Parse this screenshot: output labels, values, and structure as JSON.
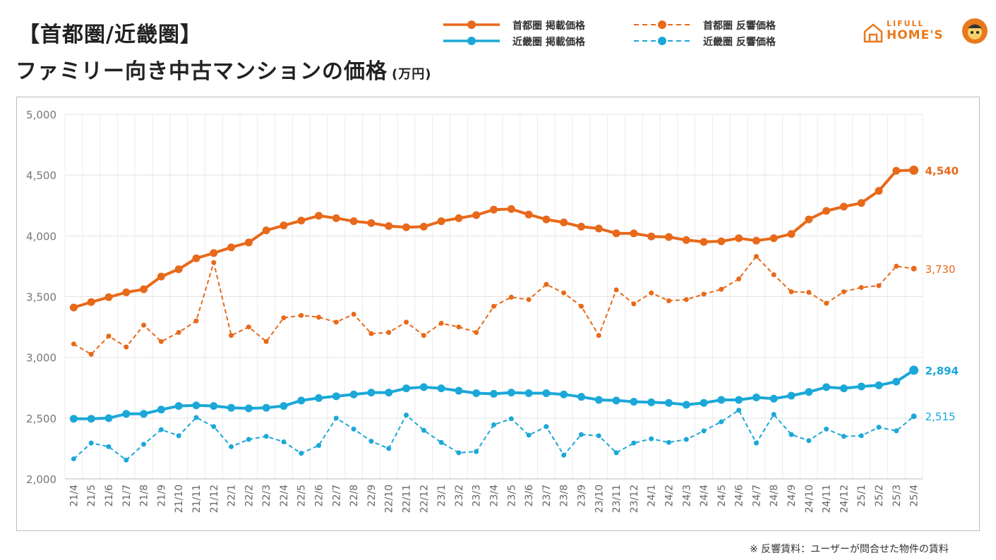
{
  "header": {
    "title_line1": "【首都圏/近畿圏】",
    "title_line2": "ファミリー向き中古マンションの価格",
    "unit": "(万円)"
  },
  "legend": {
    "items": [
      {
        "label": "首都圏 掲載価格",
        "color": "#e8691a",
        "style": "solid"
      },
      {
        "label": "近畿圏 掲載価格",
        "color": "#1ba8d8",
        "style": "solid"
      },
      {
        "label": "首都圏 反響価格",
        "color": "#e8691a",
        "style": "dashed"
      },
      {
        "label": "近畿圏 反響価格",
        "color": "#1ba8d8",
        "style": "dashed"
      }
    ]
  },
  "logo": {
    "top": "LIFULL",
    "bottom": "HOME'S"
  },
  "footnote": "※ 反響賃料：ユーザーが問合せた物件の賃料",
  "chart_data": {
    "type": "line",
    "title": "ファミリー向き中古マンションの価格",
    "ylabel": "万円",
    "ylim": [
      2000,
      5000
    ],
    "yticks": [
      2000,
      2500,
      3000,
      3500,
      4000,
      4500,
      5000
    ],
    "ytick_labels": [
      "2,000",
      "2,500",
      "3,000",
      "3,500",
      "4,000",
      "4,500",
      "5,000"
    ],
    "categories": [
      "21/4",
      "21/5",
      "21/6",
      "21/7",
      "21/8",
      "21/9",
      "21/10",
      "21/11",
      "21/12",
      "22/1",
      "22/2",
      "22/3",
      "22/4",
      "22/5",
      "22/6",
      "22/7",
      "22/8",
      "22/9",
      "22/10",
      "22/11",
      "22/12",
      "23/1",
      "23/2",
      "23/3",
      "23/4",
      "23/5",
      "23/6",
      "23/7",
      "23/8",
      "23/9",
      "23/10",
      "23/11",
      "23/12",
      "24/1",
      "24/2",
      "24/3",
      "24/4",
      "24/5",
      "24/6",
      "24/7",
      "24/8",
      "24/9",
      "24/10",
      "24/11",
      "24/12",
      "25/1",
      "25/2",
      "25/3",
      "25/4"
    ],
    "series": [
      {
        "name": "首都圏 掲載価格",
        "color": "#e8691a",
        "style": "solid",
        "end_label": "4,540",
        "values": [
          3410,
          3455,
          3495,
          3535,
          3560,
          3665,
          3725,
          3815,
          3858,
          3905,
          3945,
          4045,
          4085,
          4125,
          4165,
          4145,
          4120,
          4105,
          4080,
          4070,
          4075,
          4120,
          4145,
          4170,
          4215,
          4220,
          4175,
          4135,
          4110,
          4075,
          4060,
          4020,
          4020,
          3995,
          3990,
          3965,
          3950,
          3955,
          3980,
          3960,
          3980,
          4015,
          4135,
          4205,
          4240,
          4270,
          4370,
          4535,
          4540
        ]
      },
      {
        "name": "首都圏 反響価格",
        "color": "#e8691a",
        "style": "dashed",
        "end_label": "3,730",
        "values": [
          3110,
          3025,
          3175,
          3085,
          3265,
          3130,
          3205,
          3300,
          3780,
          3180,
          3250,
          3130,
          3325,
          3345,
          3330,
          3290,
          3355,
          3195,
          3205,
          3290,
          3180,
          3280,
          3250,
          3205,
          3420,
          3495,
          3475,
          3600,
          3530,
          3420,
          3180,
          3555,
          3440,
          3530,
          3465,
          3475,
          3520,
          3560,
          3645,
          3830,
          3680,
          3540,
          3535,
          3445,
          3540,
          3575,
          3590,
          3750,
          3730
        ]
      },
      {
        "name": "近畿圏 掲載価格",
        "color": "#1ba8d8",
        "style": "solid",
        "end_label": "2,894",
        "values": [
          2495,
          2495,
          2500,
          2535,
          2535,
          2570,
          2600,
          2605,
          2600,
          2585,
          2580,
          2585,
          2600,
          2645,
          2665,
          2680,
          2695,
          2710,
          2710,
          2745,
          2755,
          2745,
          2725,
          2705,
          2700,
          2710,
          2705,
          2705,
          2695,
          2675,
          2650,
          2645,
          2635,
          2630,
          2625,
          2610,
          2625,
          2650,
          2650,
          2670,
          2660,
          2685,
          2715,
          2755,
          2745,
          2760,
          2770,
          2800,
          2894
        ]
      },
      {
        "name": "近畿圏 反響価格",
        "color": "#1ba8d8",
        "style": "dashed",
        "end_label": "2,515",
        "values": [
          2165,
          2295,
          2265,
          2155,
          2285,
          2405,
          2355,
          2505,
          2430,
          2265,
          2325,
          2350,
          2305,
          2210,
          2275,
          2500,
          2410,
          2310,
          2250,
          2525,
          2400,
          2300,
          2215,
          2225,
          2445,
          2495,
          2360,
          2430,
          2195,
          2365,
          2355,
          2215,
          2295,
          2330,
          2300,
          2325,
          2395,
          2470,
          2565,
          2295,
          2530,
          2365,
          2315,
          2410,
          2350,
          2355,
          2425,
          2395,
          2515
        ]
      }
    ]
  }
}
